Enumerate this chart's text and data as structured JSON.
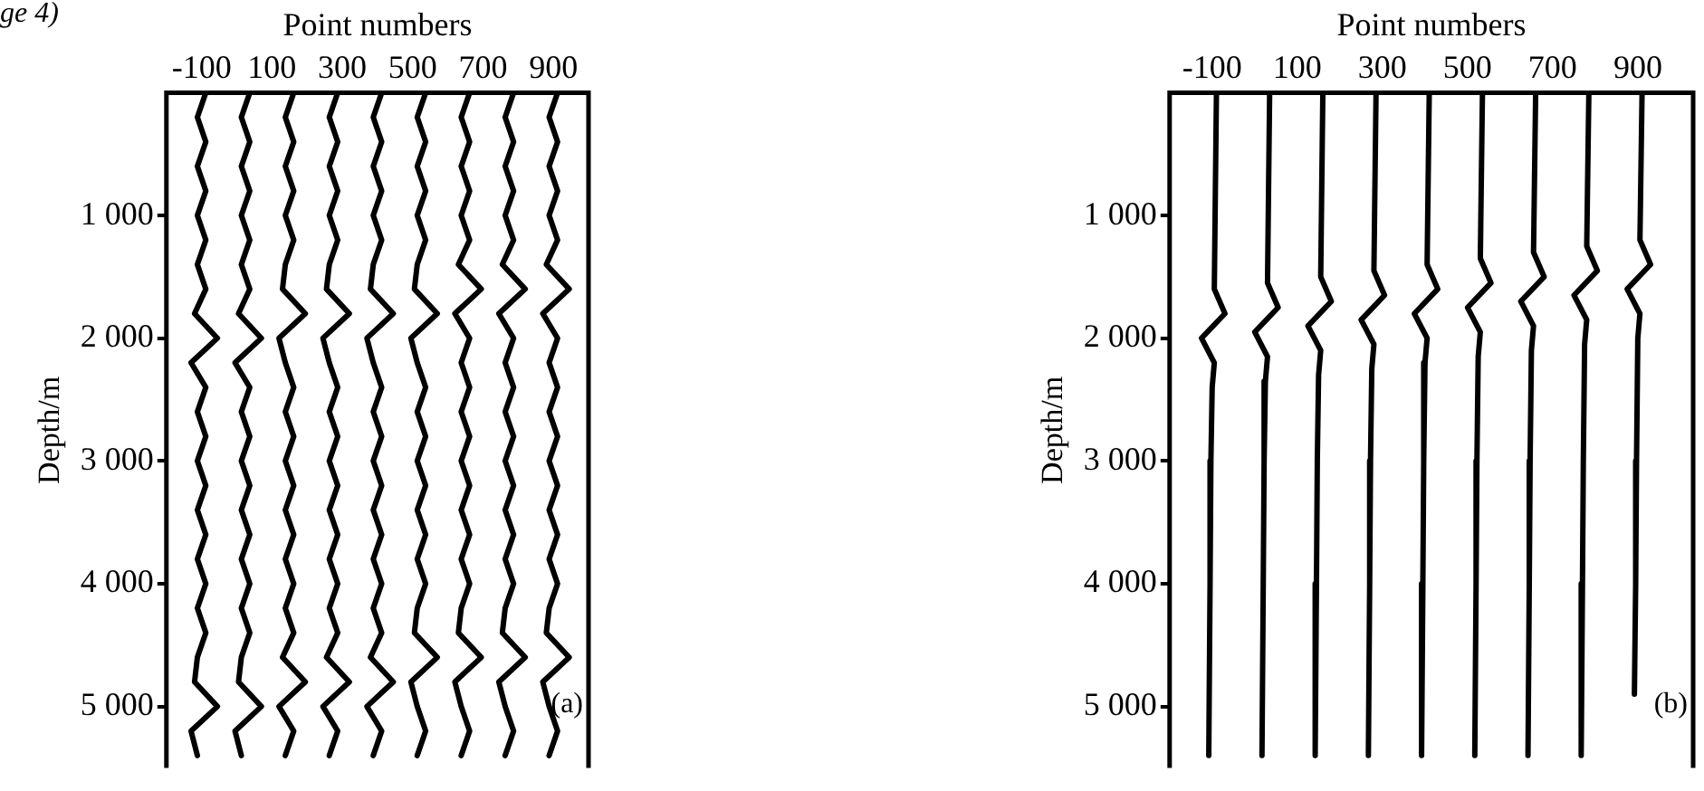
{
  "chart_data": [
    {
      "type": "line",
      "xlabel": "Point numbers",
      "ylabel": "Depth/m",
      "xlim": [
        -200,
        1000
      ],
      "xticks": [
        -100,
        100,
        300,
        500,
        700,
        900
      ],
      "ylim": [
        5500,
        0
      ],
      "yticks": [
        {
          "value": 1000,
          "label": "1 000"
        },
        {
          "value": 2000,
          "label": "2 000"
        },
        {
          "value": 3000,
          "label": "3 000"
        },
        {
          "value": 4000,
          "label": "4 000"
        },
        {
          "value": 5000,
          "label": "5 000"
        }
      ],
      "grid": false,
      "legend": false,
      "marker": "none",
      "line_style": "solid",
      "annotations": [
        "ge 4)",
        "(a)"
      ],
      "series": [
        {
          "color": "#000000",
          "x": [
            -88,
            -112,
            -88,
            -112,
            -88,
            -112,
            -88,
            -112,
            -88,
            -120,
            -55,
            -130,
            -88,
            -112,
            -88,
            -112,
            -88,
            -112,
            -88,
            -112,
            -88,
            -112,
            -88,
            -112,
            -120,
            -55,
            -130,
            -112
          ],
          "values": [
            0,
            200,
            400,
            600,
            800,
            1000,
            1200,
            1400,
            1600,
            1800,
            2000,
            2200,
            2400,
            2600,
            2800,
            3000,
            3200,
            3400,
            3600,
            3800,
            4000,
            4200,
            4400,
            4600,
            4800,
            5000,
            5200,
            5400
          ]
        },
        {
          "color": "#000000",
          "x": [
            37,
            13,
            37,
            13,
            37,
            13,
            37,
            13,
            37,
            5,
            70,
            -5,
            37,
            13,
            37,
            13,
            37,
            13,
            37,
            13,
            37,
            13,
            37,
            13,
            5,
            70,
            -5,
            13
          ],
          "values": [
            0,
            200,
            400,
            600,
            800,
            1000,
            1200,
            1400,
            1600,
            1800,
            2000,
            2200,
            2400,
            2600,
            2800,
            3000,
            3200,
            3400,
            3600,
            3800,
            4000,
            4200,
            4400,
            4600,
            4800,
            5000,
            5200,
            5400
          ]
        },
        {
          "color": "#000000",
          "x": [
            162,
            138,
            162,
            138,
            162,
            138,
            162,
            138,
            130,
            195,
            120,
            138,
            162,
            138,
            162,
            138,
            162,
            138,
            162,
            138,
            162,
            138,
            162,
            130,
            195,
            120,
            162,
            138
          ],
          "values": [
            0,
            200,
            400,
            600,
            800,
            1000,
            1200,
            1400,
            1600,
            1800,
            2000,
            2200,
            2400,
            2600,
            2800,
            3000,
            3200,
            3400,
            3600,
            3800,
            4000,
            4200,
            4400,
            4600,
            4800,
            5000,
            5200,
            5400
          ]
        },
        {
          "color": "#000000",
          "x": [
            287,
            263,
            287,
            263,
            287,
            263,
            287,
            263,
            255,
            320,
            245,
            263,
            287,
            263,
            287,
            263,
            287,
            263,
            287,
            263,
            287,
            263,
            287,
            255,
            320,
            245,
            287,
            263
          ],
          "values": [
            0,
            200,
            400,
            600,
            800,
            1000,
            1200,
            1400,
            1600,
            1800,
            2000,
            2200,
            2400,
            2600,
            2800,
            3000,
            3200,
            3400,
            3600,
            3800,
            4000,
            4200,
            4400,
            4600,
            4800,
            5000,
            5200,
            5400
          ]
        },
        {
          "color": "#000000",
          "x": [
            412,
            388,
            412,
            388,
            412,
            388,
            412,
            388,
            380,
            445,
            370,
            388,
            412,
            388,
            412,
            388,
            412,
            388,
            412,
            388,
            412,
            388,
            412,
            380,
            445,
            370,
            412,
            388
          ],
          "values": [
            0,
            200,
            400,
            600,
            800,
            1000,
            1200,
            1400,
            1600,
            1800,
            2000,
            2200,
            2400,
            2600,
            2800,
            3000,
            3200,
            3400,
            3600,
            3800,
            4000,
            4200,
            4400,
            4600,
            4800,
            5000,
            5200,
            5400
          ]
        },
        {
          "color": "#000000",
          "x": [
            537,
            513,
            537,
            513,
            537,
            513,
            537,
            513,
            505,
            570,
            495,
            513,
            537,
            513,
            537,
            513,
            537,
            513,
            537,
            513,
            537,
            513,
            505,
            570,
            495,
            513,
            537,
            513
          ],
          "values": [
            0,
            200,
            400,
            600,
            800,
            1000,
            1200,
            1400,
            1600,
            1800,
            2000,
            2200,
            2400,
            2600,
            2800,
            3000,
            3200,
            3400,
            3600,
            3800,
            4000,
            4200,
            4400,
            4600,
            4800,
            5000,
            5200,
            5400
          ]
        },
        {
          "color": "#000000",
          "x": [
            662,
            638,
            662,
            638,
            662,
            638,
            662,
            630,
            695,
            620,
            662,
            638,
            662,
            638,
            662,
            638,
            662,
            638,
            662,
            638,
            662,
            638,
            630,
            695,
            620,
            638,
            662,
            638
          ],
          "values": [
            0,
            200,
            400,
            600,
            800,
            1000,
            1200,
            1400,
            1600,
            1800,
            2000,
            2200,
            2400,
            2600,
            2800,
            3000,
            3200,
            3400,
            3600,
            3800,
            4000,
            4200,
            4400,
            4600,
            4800,
            5000,
            5200,
            5400
          ]
        },
        {
          "color": "#000000",
          "x": [
            787,
            763,
            787,
            763,
            787,
            763,
            787,
            755,
            820,
            745,
            787,
            763,
            787,
            763,
            787,
            763,
            787,
            763,
            787,
            763,
            787,
            763,
            755,
            820,
            745,
            763,
            787,
            763
          ],
          "values": [
            0,
            200,
            400,
            600,
            800,
            1000,
            1200,
            1400,
            1600,
            1800,
            2000,
            2200,
            2400,
            2600,
            2800,
            3000,
            3200,
            3400,
            3600,
            3800,
            4000,
            4200,
            4400,
            4600,
            4800,
            5000,
            5200,
            5400
          ]
        },
        {
          "color": "#000000",
          "x": [
            912,
            888,
            912,
            888,
            912,
            888,
            912,
            880,
            945,
            870,
            912,
            888,
            912,
            888,
            912,
            888,
            912,
            888,
            912,
            888,
            912,
            888,
            880,
            945,
            870,
            888,
            912,
            888
          ],
          "values": [
            0,
            200,
            400,
            600,
            800,
            1000,
            1200,
            1400,
            1600,
            1800,
            2000,
            2200,
            2400,
            2600,
            2800,
            3000,
            3200,
            3400,
            3600,
            3800,
            4000,
            4200,
            4400,
            4600,
            4800,
            5000,
            5200,
            5400
          ]
        }
      ]
    },
    {
      "type": "line",
      "xlabel": "Point numbers",
      "ylabel": "Depth/m",
      "xlim": [
        -200,
        1030
      ],
      "xticks": [
        -100,
        100,
        300,
        500,
        700,
        900
      ],
      "ylim": [
        5500,
        0
      ],
      "yticks": [
        {
          "value": 1000,
          "label": "1 000"
        },
        {
          "value": 2000,
          "label": "2 000"
        },
        {
          "value": 3000,
          "label": "3 000"
        },
        {
          "value": 4000,
          "label": "4 000"
        },
        {
          "value": 5000,
          "label": "5 000"
        }
      ],
      "grid": false,
      "legend": false,
      "marker": "none",
      "line_style": "solid",
      "annotations": [
        "(b)"
      ],
      "series": [
        {
          "color": "#000000",
          "x": [
            -90,
            -95,
            -70,
            -125,
            -95,
            -100,
            -103,
            -105,
            -108
          ],
          "values": [
            0,
            1600,
            1800,
            2000,
            2200,
            2400,
            3000,
            4000,
            5400
          ]
        },
        {
          "color": "#000000",
          "x": [
            35,
            30,
            55,
            0,
            30,
            25,
            22,
            20,
            17
          ],
          "values": [
            0,
            1550,
            1750,
            1950,
            2150,
            2350,
            3000,
            4000,
            5400
          ]
        },
        {
          "color": "#000000",
          "x": [
            160,
            155,
            180,
            125,
            155,
            150,
            147,
            145,
            142
          ],
          "values": [
            0,
            1500,
            1700,
            1900,
            2100,
            2300,
            3000,
            4000,
            5400
          ]
        },
        {
          "color": "#000000",
          "x": [
            285,
            280,
            305,
            250,
            280,
            275,
            272,
            270,
            267
          ],
          "values": [
            0,
            1450,
            1650,
            1850,
            2050,
            2250,
            3000,
            4000,
            5400
          ]
        },
        {
          "color": "#000000",
          "x": [
            410,
            405,
            430,
            375,
            405,
            400,
            397,
            395,
            392
          ],
          "values": [
            0,
            1400,
            1600,
            1800,
            2000,
            2200,
            3000,
            4000,
            5400
          ]
        },
        {
          "color": "#000000",
          "x": [
            535,
            530,
            555,
            500,
            530,
            525,
            522,
            520,
            517
          ],
          "values": [
            0,
            1350,
            1550,
            1750,
            1950,
            2150,
            3000,
            4000,
            5400
          ]
        },
        {
          "color": "#000000",
          "x": [
            660,
            655,
            680,
            625,
            655,
            650,
            647,
            645,
            642
          ],
          "values": [
            0,
            1300,
            1500,
            1700,
            1900,
            2100,
            3000,
            4000,
            5400
          ]
        },
        {
          "color": "#000000",
          "x": [
            785,
            780,
            805,
            750,
            780,
            775,
            772,
            770,
            767
          ],
          "values": [
            0,
            1250,
            1450,
            1650,
            1850,
            2050,
            3000,
            4000,
            5400
          ]
        },
        {
          "color": "#000000",
          "x": [
            910,
            905,
            930,
            875,
            905,
            900,
            897,
            895,
            892
          ],
          "values": [
            0,
            1200,
            1400,
            1600,
            1800,
            2000,
            3000,
            4000,
            4900
          ]
        }
      ]
    }
  ]
}
